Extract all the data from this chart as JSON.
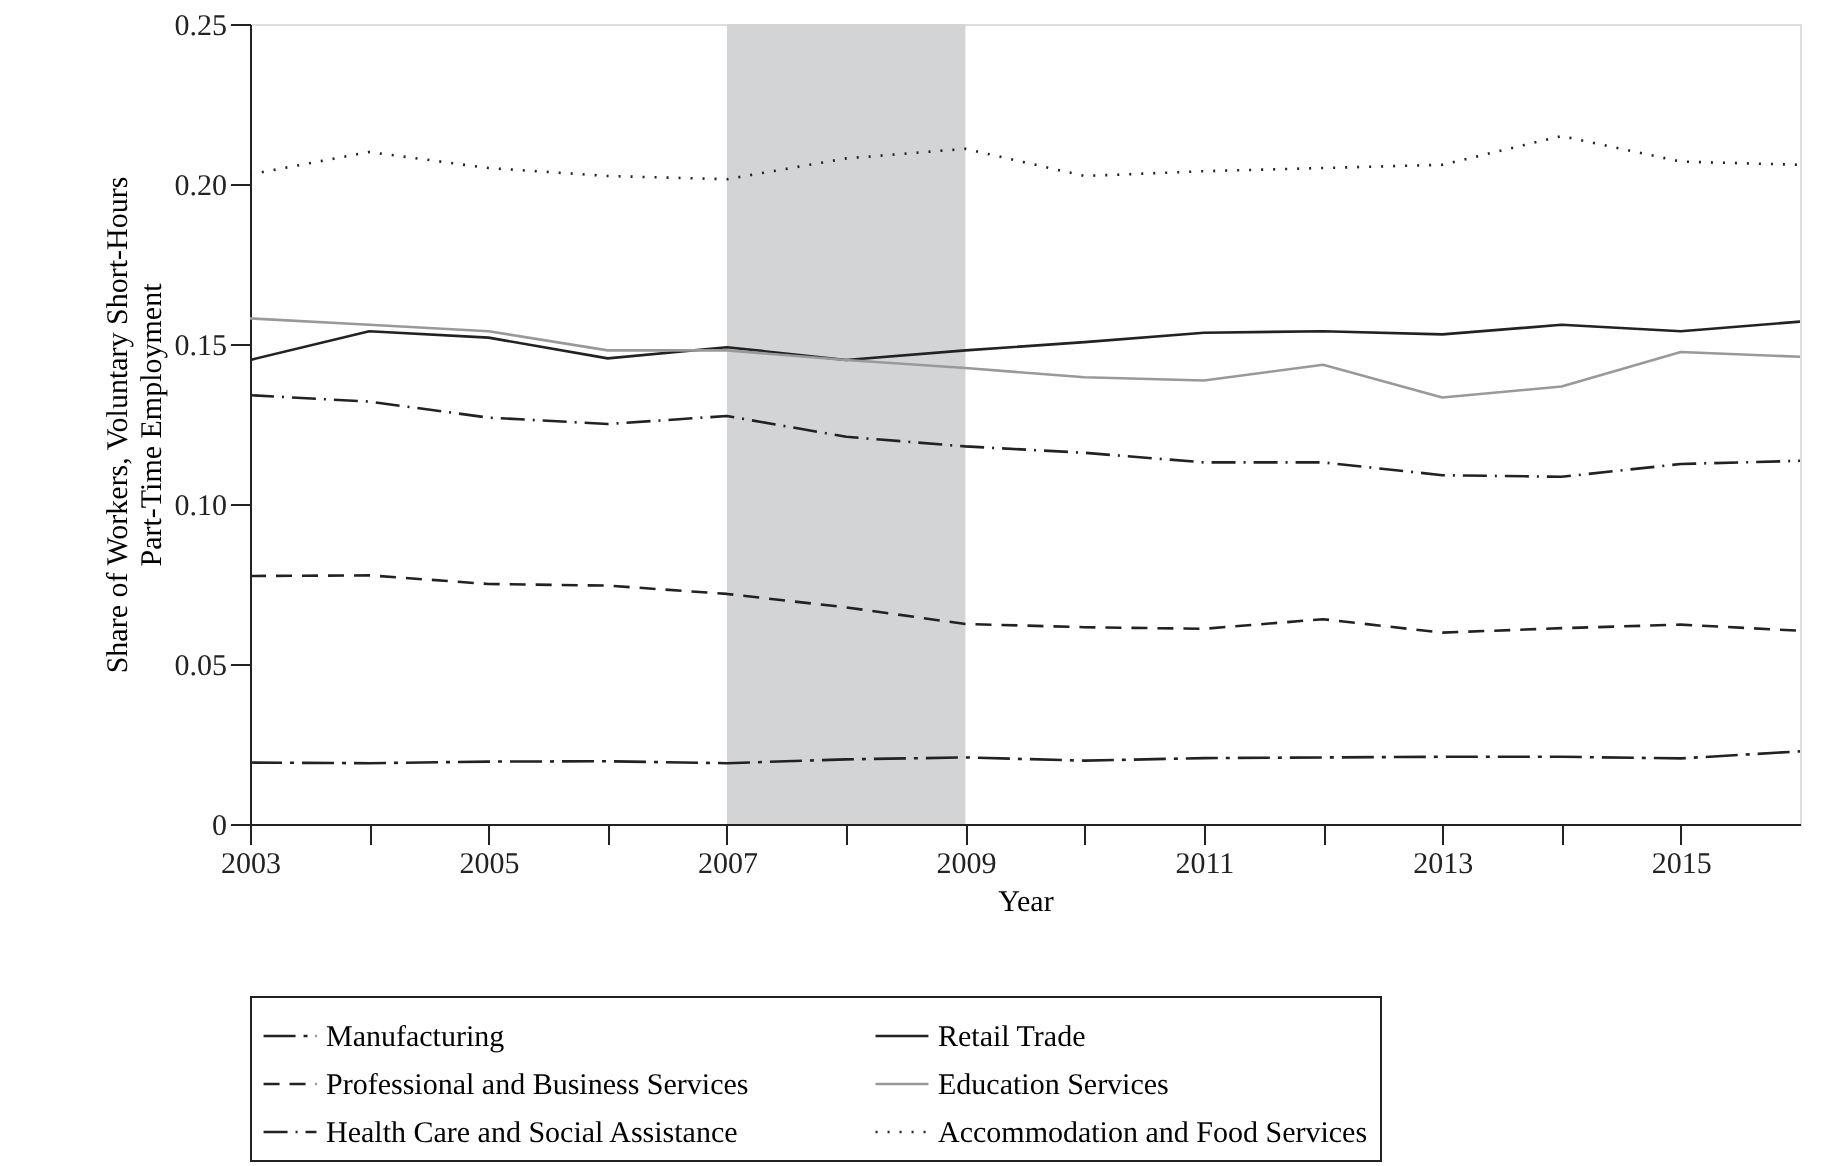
{
  "chart_data": {
    "type": "line",
    "xlabel": "Year",
    "ylabel": "Share of Workers, Voluntary Short-Hours\nPart-Time Employment",
    "x": [
      2003,
      2004,
      2005,
      2006,
      2007,
      2008,
      2009,
      2010,
      2011,
      2012,
      2013,
      2014,
      2015,
      2016
    ],
    "series": [
      {
        "name": "Manufacturing",
        "color": "#222222",
        "line_style": "longdashdot",
        "values": [
          0.0192,
          0.019,
          0.0195,
          0.0196,
          0.019,
          0.0202,
          0.0208,
          0.0198,
          0.0206,
          0.0208,
          0.021,
          0.021,
          0.0205,
          0.0227
        ]
      },
      {
        "name": "Retail Trade",
        "color": "#222222",
        "line_style": "solid",
        "values": [
          0.145,
          0.154,
          0.152,
          0.1455,
          0.149,
          0.145,
          0.148,
          0.1506,
          0.1535,
          0.154,
          0.153,
          0.156,
          0.154,
          0.157
        ]
      },
      {
        "name": "Professional and Business Services",
        "color": "#222222",
        "line_style": "dashed",
        "values": [
          0.0775,
          0.0777,
          0.075,
          0.0745,
          0.0719,
          0.0677,
          0.0625,
          0.0615,
          0.061,
          0.064,
          0.0598,
          0.0612,
          0.0623,
          0.0604
        ]
      },
      {
        "name": "Education Services",
        "color": "#999999",
        "line_style": "solid",
        "values": [
          0.158,
          0.156,
          0.154,
          0.148,
          0.148,
          0.145,
          0.1425,
          0.1396,
          0.1386,
          0.1435,
          0.1333,
          0.1367,
          0.1475,
          0.146
        ]
      },
      {
        "name": "Health Care and Social Assistance",
        "color": "#222222",
        "line_style": "dashdot",
        "values": [
          0.134,
          0.132,
          0.127,
          0.125,
          0.1275,
          0.121,
          0.118,
          0.116,
          0.113,
          0.113,
          0.109,
          0.1085,
          0.1125,
          0.1135
        ]
      },
      {
        "name": "Accommodation and Food Services",
        "color": "#222222",
        "line_style": "dotted",
        "values": [
          0.203,
          0.21,
          0.205,
          0.2025,
          0.2015,
          0.208,
          0.211,
          0.2025,
          0.204,
          0.205,
          0.206,
          0.215,
          0.207,
          0.206
        ]
      }
    ],
    "bands": [
      {
        "axis": "x",
        "from": 2007,
        "to": 2009,
        "color": "#d3d4d6"
      }
    ],
    "xlim": [
      2003,
      2016
    ],
    "xticks": [
      2003,
      {
        "value": 2004,
        "label": null
      },
      2005,
      {
        "value": 2006,
        "label": null
      },
      2007,
      {
        "value": 2008,
        "label": null
      },
      2009,
      {
        "value": 2010,
        "label": null
      },
      2011,
      {
        "value": 2012,
        "label": null
      },
      2013,
      {
        "value": 2014,
        "label": null
      },
      2015
    ],
    "ylim": [
      0,
      0.25
    ],
    "yticks": [
      0,
      0.05,
      {
        "value": 0.1,
        "label": "0.10"
      },
      0.15,
      {
        "value": 0.2,
        "label": "0.20"
      },
      0.25
    ],
    "grid": false,
    "legend": "bottom"
  }
}
